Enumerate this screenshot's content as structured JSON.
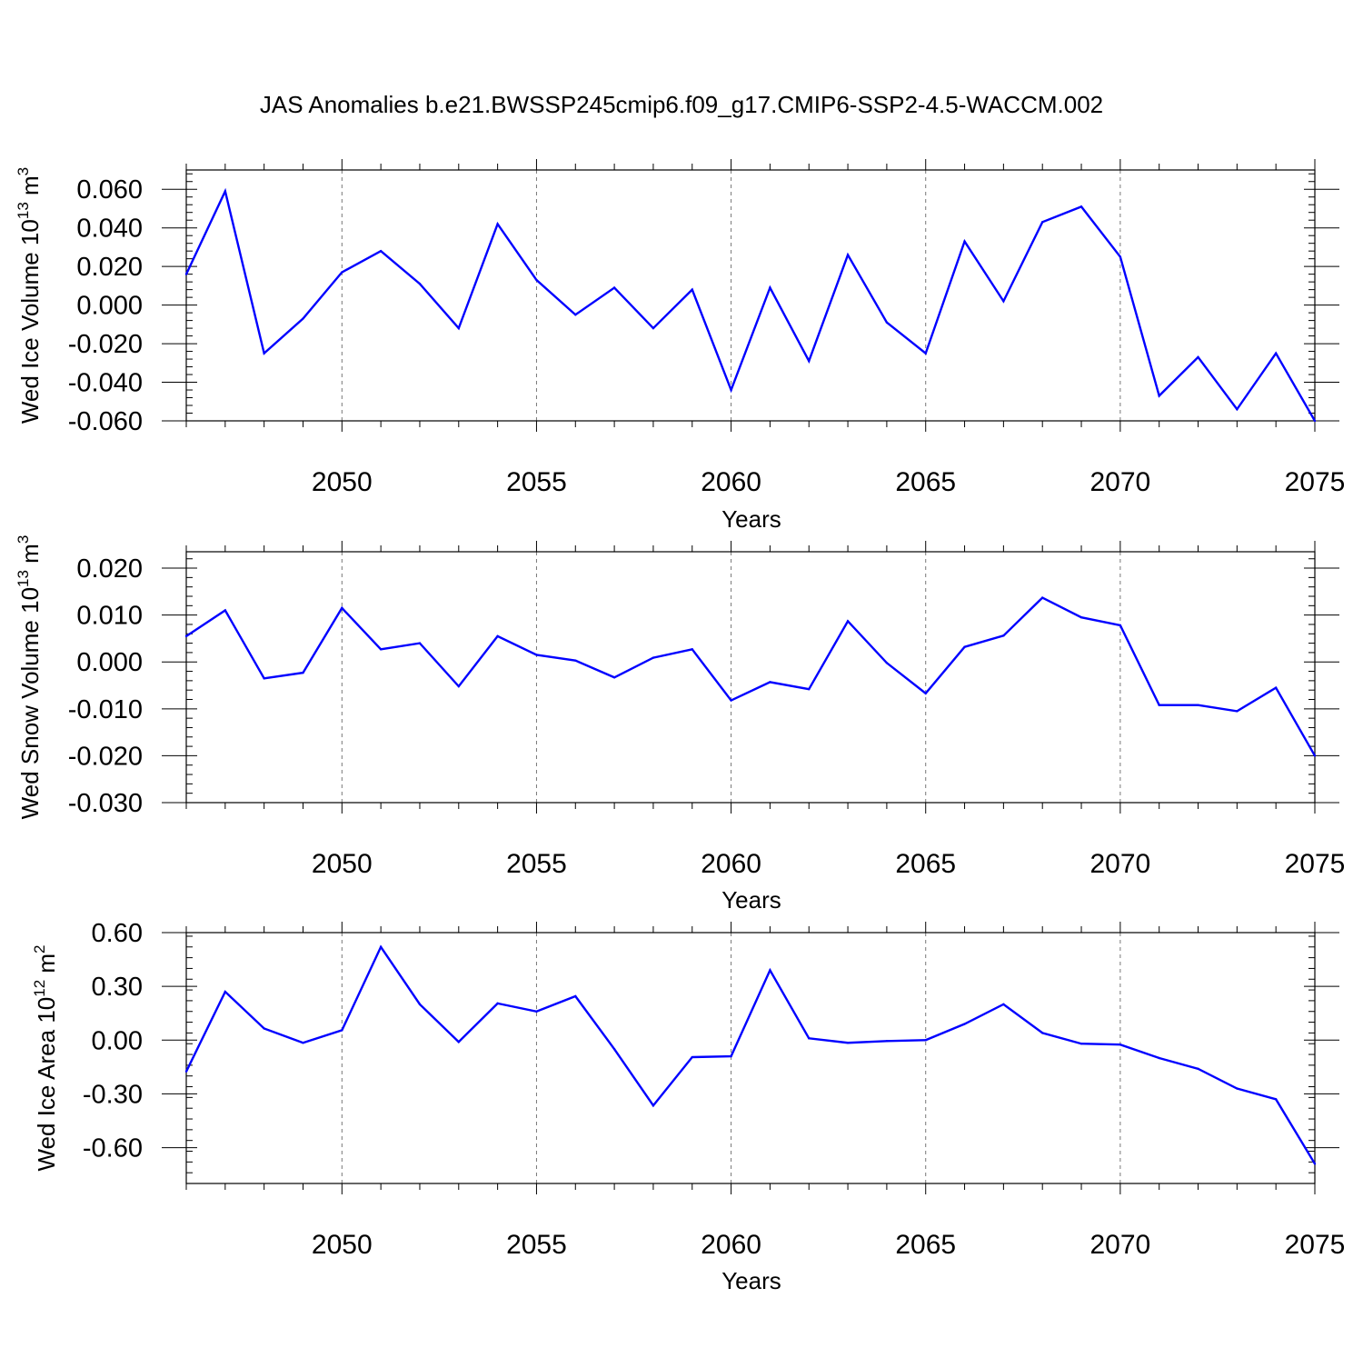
{
  "title": "JAS Anomalies b.e21.BWSSP245cmip6.f09_g17.CMIP6-SSP2-4.5-WACCM.002",
  "line_color": "#0000ff",
  "chart_data": [
    {
      "type": "line",
      "ylabel": "Wed Ice Volume 10",
      "ylabel_exp": "13",
      "ylabel_unit": "m",
      "ylabel_unit_exp": "3",
      "xlabel": "Years",
      "xlim": [
        2046,
        2075
      ],
      "ylim": [
        -0.06,
        0.07
      ],
      "xticks": [
        2050,
        2055,
        2060,
        2065,
        2070,
        2075
      ],
      "yticks": [
        -0.06,
        -0.04,
        -0.02,
        0.0,
        0.02,
        0.04,
        0.06
      ],
      "ytick_labels": [
        "-0.060",
        "-0.040",
        "-0.020",
        "0.000",
        "0.020",
        "0.040",
        "0.060"
      ],
      "x": [
        2046,
        2047,
        2048,
        2049,
        2050,
        2051,
        2052,
        2053,
        2054,
        2055,
        2056,
        2057,
        2058,
        2059,
        2060,
        2061,
        2062,
        2063,
        2064,
        2065,
        2066,
        2067,
        2068,
        2069,
        2070,
        2071,
        2072,
        2073,
        2074,
        2075
      ],
      "values": [
        0.016,
        0.059,
        -0.025,
        -0.007,
        0.017,
        0.028,
        0.011,
        -0.012,
        0.042,
        0.013,
        -0.005,
        0.009,
        -0.012,
        0.008,
        -0.044,
        0.009,
        -0.029,
        0.026,
        -0.009,
        -0.025,
        0.033,
        0.002,
        0.043,
        0.051,
        0.025,
        -0.047,
        -0.027,
        -0.054,
        -0.025,
        -0.06
      ]
    },
    {
      "type": "line",
      "ylabel": "Wed Snow Volume 10",
      "ylabel_exp": "13",
      "ylabel_unit": "m",
      "ylabel_unit_exp": "3",
      "xlabel": "Years",
      "xlim": [
        2046,
        2075
      ],
      "ylim": [
        -0.03,
        0.0235
      ],
      "xticks": [
        2050,
        2055,
        2060,
        2065,
        2070,
        2075
      ],
      "yticks": [
        -0.03,
        -0.02,
        -0.01,
        0.0,
        0.01,
        0.02
      ],
      "ytick_labels": [
        "-0.030",
        "-0.020",
        "-0.010",
        "0.000",
        "0.010",
        "0.020"
      ],
      "x": [
        2046,
        2047,
        2048,
        2049,
        2050,
        2051,
        2052,
        2053,
        2054,
        2055,
        2056,
        2057,
        2058,
        2059,
        2060,
        2061,
        2062,
        2063,
        2064,
        2065,
        2066,
        2067,
        2068,
        2069,
        2070,
        2071,
        2072,
        2073,
        2074,
        2075
      ],
      "values": [
        0.0055,
        0.011,
        -0.0035,
        -0.0023,
        0.0115,
        0.0027,
        0.004,
        -0.0052,
        0.0055,
        0.0015,
        0.0003,
        -0.0033,
        0.0009,
        0.0027,
        -0.0082,
        -0.0043,
        -0.0058,
        0.0087,
        -0.0002,
        -0.0067,
        0.0032,
        0.0056,
        0.0137,
        0.0095,
        0.0078,
        -0.0092,
        -0.0092,
        -0.0105,
        -0.0055,
        -0.02
      ]
    },
    {
      "type": "line",
      "ylabel": "Wed Ice Area 10",
      "ylabel_exp": "12",
      "ylabel_unit": "m",
      "ylabel_unit_exp": "2",
      "xlabel": "Years",
      "xlim": [
        2046,
        2075
      ],
      "ylim": [
        -0.8,
        0.6
      ],
      "xticks": [
        2050,
        2055,
        2060,
        2065,
        2070,
        2075
      ],
      "yticks": [
        -0.6,
        -0.3,
        0.0,
        0.3,
        0.6
      ],
      "ytick_labels": [
        "-0.60",
        "-0.30",
        "0.00",
        "0.30",
        "0.60"
      ],
      "x": [
        2046,
        2047,
        2048,
        2049,
        2050,
        2051,
        2052,
        2053,
        2054,
        2055,
        2056,
        2057,
        2058,
        2059,
        2060,
        2061,
        2062,
        2063,
        2064,
        2065,
        2066,
        2067,
        2068,
        2069,
        2070,
        2071,
        2072,
        2073,
        2074,
        2075
      ],
      "values": [
        -0.175,
        0.27,
        0.065,
        -0.015,
        0.055,
        0.52,
        0.2,
        -0.01,
        0.205,
        0.16,
        0.245,
        -0.05,
        -0.365,
        -0.095,
        -0.09,
        0.39,
        0.01,
        -0.015,
        -0.005,
        0.0,
        0.09,
        0.2,
        0.04,
        -0.02,
        -0.025,
        -0.1,
        -0.16,
        -0.27,
        -0.33,
        -0.69
      ]
    }
  ]
}
